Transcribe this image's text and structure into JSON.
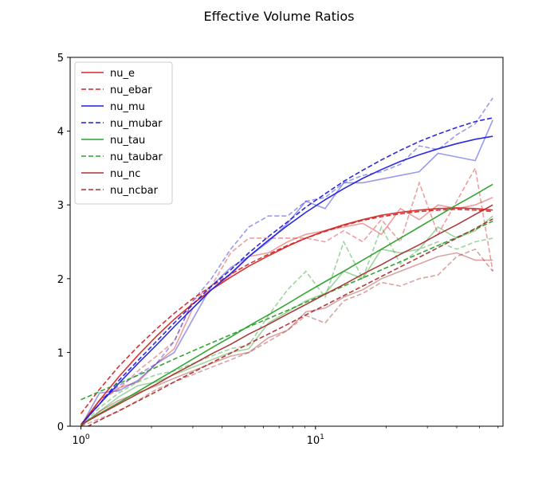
{
  "chart_data": {
    "type": "line",
    "title": "Effective Volume Ratios",
    "xscale": "log",
    "xlim": [
      0.9,
      63
    ],
    "ylim": [
      0,
      5
    ],
    "xlabel": "",
    "ylabel": "",
    "grid": false,
    "legend_position": "top-left",
    "x_ticks": [
      {
        "value": 1,
        "base": "10",
        "exp": "0"
      },
      {
        "value": 10,
        "base": "10",
        "exp": "1"
      }
    ],
    "y_ticks": [
      0,
      1,
      2,
      3,
      4,
      5
    ],
    "x": [
      1.0,
      1.2,
      1.45,
      1.75,
      2.1,
      2.5,
      3.0,
      3.6,
      4.35,
      5.2,
      6.3,
      7.6,
      9.1,
      11.0,
      13.2,
      15.9,
      19.1,
      23.0,
      27.7,
      33.3,
      40.0,
      48.0,
      57.0
    ],
    "series": [
      {
        "name": "nu_e",
        "color": "#d62728",
        "dash": "solid",
        "fit": [
          0.02,
          0.35,
          0.67,
          0.96,
          1.22,
          1.45,
          1.66,
          1.85,
          2.02,
          2.17,
          2.31,
          2.44,
          2.55,
          2.65,
          2.73,
          2.8,
          2.86,
          2.9,
          2.93,
          2.95,
          2.96,
          2.95,
          2.93
        ],
        "raw": [
          0.0,
          0.35,
          0.52,
          0.6,
          0.85,
          1.05,
          1.6,
          1.85,
          2.05,
          2.3,
          2.35,
          2.5,
          2.6,
          2.65,
          2.7,
          2.75,
          2.6,
          2.95,
          2.8,
          3.0,
          2.95,
          3.0,
          3.1
        ]
      },
      {
        "name": "nu_ebar",
        "color": "#d62728",
        "dash": "dashed",
        "fit": [
          0.17,
          0.5,
          0.81,
          1.08,
          1.32,
          1.53,
          1.73,
          1.9,
          2.06,
          2.2,
          2.33,
          2.45,
          2.55,
          2.64,
          2.72,
          2.79,
          2.84,
          2.88,
          2.91,
          2.93,
          2.94,
          2.93,
          2.91
        ],
        "raw": [
          0.0,
          0.35,
          0.5,
          0.75,
          0.95,
          1.15,
          1.7,
          1.9,
          2.35,
          2.55,
          2.55,
          2.55,
          2.55,
          2.5,
          2.65,
          2.5,
          2.8,
          2.5,
          3.3,
          2.6,
          3.05,
          3.5,
          2.1
        ]
      },
      {
        "name": "nu_mu",
        "color": "#1f1fdc",
        "dash": "solid",
        "fit": [
          0.02,
          0.3,
          0.58,
          0.85,
          1.1,
          1.35,
          1.6,
          1.85,
          2.07,
          2.3,
          2.52,
          2.72,
          2.9,
          3.07,
          3.22,
          3.36,
          3.48,
          3.59,
          3.68,
          3.76,
          3.83,
          3.89,
          3.93
        ],
        "raw": [
          0.0,
          0.45,
          0.48,
          0.62,
          0.85,
          1.0,
          1.45,
          1.9,
          2.15,
          2.3,
          2.5,
          2.75,
          3.05,
          2.95,
          3.3,
          3.3,
          3.35,
          3.4,
          3.45,
          3.7,
          3.65,
          3.6,
          4.15
        ]
      },
      {
        "name": "nu_mubar",
        "color": "#1f1fdc",
        "dash": "dashed",
        "fit": [
          0.02,
          0.3,
          0.62,
          0.89,
          1.15,
          1.4,
          1.65,
          1.9,
          2.12,
          2.35,
          2.57,
          2.77,
          2.97,
          3.15,
          3.32,
          3.47,
          3.61,
          3.74,
          3.86,
          3.96,
          4.05,
          4.13,
          4.18
        ],
        "raw": [
          0.0,
          0.35,
          0.55,
          0.7,
          0.85,
          1.15,
          1.7,
          2.0,
          2.4,
          2.7,
          2.85,
          2.85,
          3.05,
          3.1,
          3.3,
          3.4,
          3.45,
          3.55,
          3.8,
          3.75,
          3.95,
          4.1,
          4.45
        ]
      },
      {
        "name": "nu_tau",
        "color": "#2ca02c",
        "dash": "solid",
        "fit": [
          0.02,
          0.17,
          0.32,
          0.47,
          0.62,
          0.76,
          0.91,
          1.06,
          1.21,
          1.36,
          1.51,
          1.66,
          1.81,
          1.96,
          2.1,
          2.25,
          2.4,
          2.55,
          2.7,
          2.85,
          3.0,
          3.14,
          3.28
        ],
        "raw": [
          0.0,
          0.2,
          0.4,
          0.55,
          0.6,
          0.7,
          0.8,
          0.9,
          1.0,
          1.05,
          1.4,
          1.55,
          1.7,
          1.8,
          2.1,
          2.0,
          2.4,
          2.35,
          2.4,
          2.7,
          2.55,
          2.65,
          2.85
        ]
      },
      {
        "name": "nu_taubar",
        "color": "#2ca02c",
        "dash": "dashed",
        "fit": [
          0.36,
          0.47,
          0.58,
          0.69,
          0.8,
          0.91,
          1.02,
          1.13,
          1.24,
          1.35,
          1.46,
          1.57,
          1.68,
          1.79,
          1.9,
          2.01,
          2.12,
          2.23,
          2.34,
          2.45,
          2.56,
          2.67,
          2.78
        ],
        "raw": [
          0.0,
          0.25,
          0.45,
          0.6,
          0.7,
          0.75,
          0.85,
          0.95,
          1.05,
          1.1,
          1.5,
          1.85,
          2.1,
          1.75,
          2.5,
          2.0,
          2.7,
          2.2,
          2.4,
          2.5,
          2.4,
          2.5,
          2.55
        ]
      },
      {
        "name": "nu_nc",
        "color": "#a83232",
        "dash": "solid",
        "fit": [
          0.02,
          0.16,
          0.3,
          0.44,
          0.57,
          0.71,
          0.84,
          0.98,
          1.11,
          1.25,
          1.38,
          1.52,
          1.65,
          1.79,
          1.92,
          2.06,
          2.19,
          2.33,
          2.46,
          2.6,
          2.73,
          2.87,
          3.0
        ],
        "raw": [
          0.0,
          0.2,
          0.35,
          0.45,
          0.55,
          0.65,
          0.75,
          0.85,
          0.95,
          1.0,
          1.2,
          1.3,
          1.55,
          1.6,
          1.75,
          1.85,
          2.0,
          2.1,
          2.2,
          2.3,
          2.35,
          2.25,
          2.25
        ]
      },
      {
        "name": "nu_ncbar",
        "color": "#a83232",
        "dash": "dashed",
        "fit": [
          -0.05,
          0.08,
          0.21,
          0.34,
          0.47,
          0.6,
          0.73,
          0.86,
          0.99,
          1.12,
          1.25,
          1.38,
          1.51,
          1.64,
          1.77,
          1.9,
          2.03,
          2.16,
          2.29,
          2.42,
          2.55,
          2.68,
          2.81
        ],
        "raw": [
          0.0,
          0.1,
          0.2,
          0.35,
          0.5,
          0.6,
          0.7,
          0.8,
          0.9,
          1.0,
          1.15,
          1.3,
          1.5,
          1.4,
          1.7,
          1.8,
          1.95,
          1.9,
          2.0,
          2.05,
          2.3,
          2.4,
          2.1
        ]
      }
    ]
  }
}
